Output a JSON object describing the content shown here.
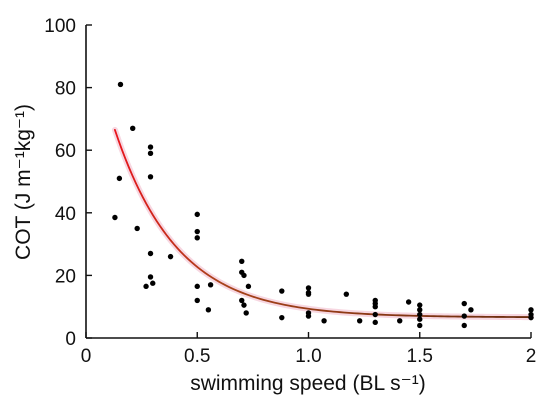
{
  "chart_data": {
    "type": "scatter",
    "title": "",
    "xlabel": "swimming speed (BL s⁻¹)",
    "ylabel": "COT (J m⁻¹kg⁻¹)",
    "xlim": [
      0,
      2
    ],
    "ylim": [
      0,
      100
    ],
    "grid": false,
    "x_ticks": [
      {
        "value": 0,
        "label": "0"
      },
      {
        "value": 0.5,
        "label": "0.5"
      },
      {
        "value": 1.0,
        "label": "1.0"
      },
      {
        "value": 1.5,
        "label": "1.5"
      },
      {
        "value": 2,
        "label": "2"
      }
    ],
    "y_ticks": [
      {
        "value": 0,
        "label": "0"
      },
      {
        "value": 20,
        "label": "20"
      },
      {
        "value": 40,
        "label": "40"
      },
      {
        "value": 60,
        "label": "60"
      },
      {
        "value": 80,
        "label": "80"
      },
      {
        "value": 100,
        "label": "100"
      }
    ],
    "points": [
      [
        0.13,
        38.5
      ],
      [
        0.15,
        51
      ],
      [
        0.155,
        81
      ],
      [
        0.21,
        67
      ],
      [
        0.23,
        35
      ],
      [
        0.27,
        16.5
      ],
      [
        0.29,
        61
      ],
      [
        0.29,
        59
      ],
      [
        0.29,
        51.5
      ],
      [
        0.29,
        27
      ],
      [
        0.29,
        19.5
      ],
      [
        0.3,
        17.5
      ],
      [
        0.38,
        26
      ],
      [
        0.5,
        39.5
      ],
      [
        0.5,
        34
      ],
      [
        0.5,
        32
      ],
      [
        0.5,
        16.5
      ],
      [
        0.5,
        12
      ],
      [
        0.55,
        9
      ],
      [
        0.56,
        17
      ],
      [
        0.7,
        24.5
      ],
      [
        0.7,
        21
      ],
      [
        0.71,
        20
      ],
      [
        0.7,
        12
      ],
      [
        0.71,
        10.5
      ],
      [
        0.72,
        8
      ],
      [
        0.73,
        16.5
      ],
      [
        0.88,
        15
      ],
      [
        0.88,
        6.5
      ],
      [
        1.0,
        16
      ],
      [
        1.0,
        14.5
      ],
      [
        1.0,
        14
      ],
      [
        1.0,
        8
      ],
      [
        1.0,
        7
      ],
      [
        1.07,
        5.5
      ],
      [
        1.17,
        14
      ],
      [
        1.23,
        5.5
      ],
      [
        1.3,
        12
      ],
      [
        1.3,
        11
      ],
      [
        1.3,
        10
      ],
      [
        1.3,
        7.5
      ],
      [
        1.3,
        5
      ],
      [
        1.41,
        5.5
      ],
      [
        1.45,
        11.5
      ],
      [
        1.5,
        10.5
      ],
      [
        1.5,
        9
      ],
      [
        1.5,
        7.5
      ],
      [
        1.5,
        6
      ],
      [
        1.5,
        4
      ],
      [
        1.7,
        11
      ],
      [
        1.7,
        7
      ],
      [
        1.7,
        4
      ],
      [
        1.73,
        9
      ],
      [
        2.0,
        9
      ],
      [
        2.0,
        7.5
      ],
      [
        2.0,
        6.5
      ]
    ],
    "fit_curve": {
      "model": "exponential decay",
      "x_range": [
        0.13,
        2.0
      ],
      "asymptote": 6.6,
      "amplitude": 95,
      "rate": 3.55
    },
    "colors": {
      "points": "#000000",
      "curve_start": "#e8141c",
      "curve_end": "#6b2d0e",
      "curve_glow": "#f4c6d4",
      "axis": "#111111"
    }
  }
}
